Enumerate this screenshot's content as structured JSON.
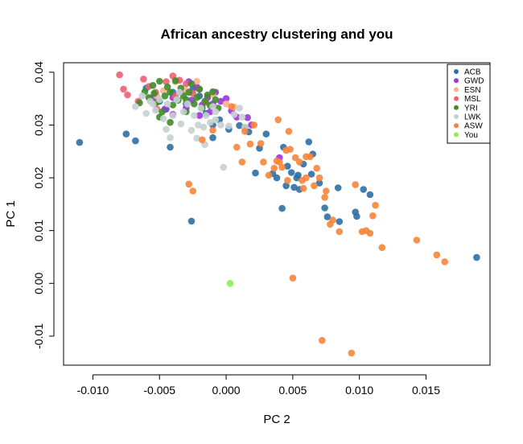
{
  "chart_data": {
    "type": "scatter",
    "title": "African ancestry clustering and you",
    "xlabel": "PC 2",
    "ylabel": "PC 1",
    "xlim": [
      -0.0122,
      0.0198
    ],
    "ylim": [
      -0.0155,
      0.0418
    ],
    "x_ticks": [
      -0.01,
      -0.005,
      0.0,
      0.005,
      0.01,
      0.015
    ],
    "x_tick_labels": [
      "-0.010",
      "-0.005",
      "0.000",
      "0.005",
      "0.010",
      "0.015"
    ],
    "y_ticks": [
      -0.01,
      0.0,
      0.01,
      0.02,
      0.03,
      0.04
    ],
    "y_tick_labels": [
      "-0.01",
      "0.00",
      "0.01",
      "0.02",
      "0.03",
      "0.04"
    ],
    "legend_position": "top-right",
    "series": [
      {
        "name": "ACB",
        "color": "#2f6fa3",
        "points": [
          [
            -0.011,
            0.0267
          ],
          [
            -0.0075,
            0.0283
          ],
          [
            -0.0068,
            0.027
          ],
          [
            -0.0042,
            0.0258
          ],
          [
            -0.0026,
            0.0118
          ],
          [
            -0.001,
            0.0276
          ],
          [
            0.0002,
            0.0292
          ],
          [
            0.001,
            0.0299
          ],
          [
            0.0014,
            0.0295
          ],
          [
            0.0017,
            0.0287
          ],
          [
            0.0022,
            0.0209
          ],
          [
            0.0025,
            0.0256
          ],
          [
            0.003,
            0.0283
          ],
          [
            0.0035,
            0.0208
          ],
          [
            0.0038,
            0.02
          ],
          [
            0.0042,
            0.0142
          ],
          [
            0.0043,
            0.0258
          ],
          [
            0.0045,
            0.0185
          ],
          [
            0.0046,
            0.0222
          ],
          [
            0.0049,
            0.021
          ],
          [
            0.0051,
            0.0182
          ],
          [
            0.0053,
            0.02
          ],
          [
            0.0054,
            0.0205
          ],
          [
            0.0055,
            0.0178
          ],
          [
            0.0058,
            0.0226
          ],
          [
            0.0062,
            0.0268
          ],
          [
            0.0064,
            0.0207
          ],
          [
            0.0065,
            0.0245
          ],
          [
            0.007,
            0.019
          ],
          [
            0.0074,
            0.0143
          ],
          [
            0.0076,
            0.0126
          ],
          [
            0.0084,
            0.0181
          ],
          [
            0.0085,
            0.0117
          ],
          [
            0.0097,
            0.0135
          ],
          [
            0.0098,
            0.0127
          ],
          [
            0.0103,
            0.0178
          ],
          [
            0.0108,
            0.0168
          ],
          [
            0.0188,
            0.0049
          ],
          [
            -0.005,
            0.0345
          ],
          [
            -0.004,
            0.0362
          ],
          [
            -0.003,
            0.034
          ],
          [
            -0.002,
            0.0355
          ],
          [
            -0.0015,
            0.0322
          ],
          [
            -0.0005,
            0.031
          ],
          [
            -0.006,
            0.037
          ],
          [
            -0.0045,
            0.033
          ],
          [
            -0.0025,
            0.0368
          ],
          [
            -0.001,
            0.03
          ]
        ]
      },
      {
        "name": "GWD",
        "color": "#a032e0",
        "points": [
          [
            -0.0046,
            0.033
          ],
          [
            -0.004,
            0.0352
          ],
          [
            -0.0034,
            0.0362
          ],
          [
            -0.003,
            0.0332
          ],
          [
            -0.0026,
            0.0347
          ],
          [
            -0.0022,
            0.0372
          ],
          [
            -0.0018,
            0.0338
          ],
          [
            -0.0014,
            0.0352
          ],
          [
            -0.0012,
            0.0325
          ],
          [
            -0.0008,
            0.0362
          ],
          [
            -0.0004,
            0.0345
          ],
          [
            0.0,
            0.035
          ],
          [
            0.0004,
            0.0327
          ],
          [
            0.0008,
            0.0315
          ],
          [
            0.0016,
            0.0314
          ],
          [
            0.0019,
            0.03
          ],
          [
            0.004,
            0.0238
          ],
          [
            -0.0055,
            0.0352
          ],
          [
            -0.0028,
            0.0382
          ],
          [
            -0.002,
            0.0318
          ],
          [
            -0.001,
            0.034
          ],
          [
            -0.004,
            0.032
          ]
        ]
      },
      {
        "name": "ESN",
        "color": "#f8b48a",
        "points": [
          [
            -0.0052,
            0.0355
          ],
          [
            -0.0038,
            0.0382
          ],
          [
            -0.0022,
            0.0383
          ],
          [
            -0.001,
            0.0358
          ],
          [
            0.0006,
            0.0334
          ],
          [
            -0.0047,
            0.0365
          ],
          [
            -0.003,
            0.0365
          ],
          [
            0.0,
            0.034
          ]
        ]
      },
      {
        "name": "MSL",
        "color": "#ef5f72",
        "points": [
          [
            -0.008,
            0.0395
          ],
          [
            -0.0077,
            0.0368
          ],
          [
            -0.0074,
            0.0357
          ],
          [
            -0.0066,
            0.0345
          ],
          [
            -0.0062,
            0.0387
          ],
          [
            -0.0058,
            0.0373
          ],
          [
            -0.0053,
            0.0362
          ],
          [
            -0.0045,
            0.0382
          ],
          [
            -0.004,
            0.0393
          ],
          [
            -0.0035,
            0.0385
          ],
          [
            -0.003,
            0.0378
          ],
          [
            -0.0025,
            0.036
          ],
          [
            -0.002,
            0.0368
          ],
          [
            -0.0015,
            0.0343
          ],
          [
            -0.0052,
            0.033
          ],
          [
            -0.0038,
            0.0355
          ]
        ]
      },
      {
        "name": "YRI",
        "color": "#3f8c2a",
        "points": [
          [
            -0.0065,
            0.0342
          ],
          [
            -0.0061,
            0.0363
          ],
          [
            -0.0058,
            0.0352
          ],
          [
            -0.0055,
            0.0375
          ],
          [
            -0.0052,
            0.0343
          ],
          [
            -0.005,
            0.0383
          ],
          [
            -0.0048,
            0.0325
          ],
          [
            -0.0046,
            0.0355
          ],
          [
            -0.0044,
            0.0372
          ],
          [
            -0.0042,
            0.0362
          ],
          [
            -0.004,
            0.0338
          ],
          [
            -0.0038,
            0.0384
          ],
          [
            -0.0036,
            0.0347
          ],
          [
            -0.0034,
            0.037
          ],
          [
            -0.0032,
            0.0355
          ],
          [
            -0.003,
            0.0325
          ],
          [
            -0.0028,
            0.0362
          ],
          [
            -0.0026,
            0.0378
          ],
          [
            -0.0024,
            0.034
          ],
          [
            -0.0022,
            0.0352
          ],
          [
            -0.002,
            0.0368
          ],
          [
            -0.0018,
            0.0332
          ],
          [
            -0.0016,
            0.0345
          ],
          [
            -0.0014,
            0.0357
          ],
          [
            -0.0012,
            0.0337
          ],
          [
            -0.001,
            0.0363
          ],
          [
            -0.0008,
            0.0348
          ],
          [
            -0.0006,
            0.0332
          ],
          [
            -0.005,
            0.0315
          ],
          [
            -0.0042,
            0.0305
          ],
          [
            -0.003,
            0.0348
          ],
          [
            -0.0054,
            0.036
          ]
        ]
      },
      {
        "name": "LWK",
        "color": "#c6d0d0",
        "points": [
          [
            -0.0068,
            0.0335
          ],
          [
            -0.0063,
            0.0355
          ],
          [
            -0.006,
            0.0322
          ],
          [
            -0.0057,
            0.0345
          ],
          [
            -0.0053,
            0.0328
          ],
          [
            -0.005,
            0.0348
          ],
          [
            -0.0047,
            0.0312
          ],
          [
            -0.0044,
            0.034
          ],
          [
            -0.0042,
            0.0276
          ],
          [
            -0.004,
            0.0318
          ],
          [
            -0.0037,
            0.0348
          ],
          [
            -0.0034,
            0.0302
          ],
          [
            -0.0032,
            0.0325
          ],
          [
            -0.0029,
            0.034
          ],
          [
            -0.0026,
            0.029
          ],
          [
            -0.0024,
            0.0318
          ],
          [
            -0.0021,
            0.03
          ],
          [
            -0.0019,
            0.0332
          ],
          [
            -0.0017,
            0.0296
          ],
          [
            -0.0015,
            0.0318
          ],
          [
            -0.0012,
            0.0305
          ],
          [
            -0.001,
            0.0335
          ],
          [
            -0.0008,
            0.031
          ],
          [
            -0.0004,
            0.03
          ],
          [
            0.0002,
            0.0298
          ],
          [
            0.0006,
            0.032
          ],
          [
            0.001,
            0.0332
          ],
          [
            0.0012,
            0.0315
          ],
          [
            0.0014,
            0.0296
          ],
          [
            -0.0016,
            0.0263
          ],
          [
            -0.0022,
            0.0275
          ],
          [
            -0.0045,
            0.0292
          ],
          [
            -0.0055,
            0.034
          ],
          [
            -0.0035,
            0.0362
          ],
          [
            -0.0008,
            0.0325
          ],
          [
            -0.0002,
            0.022
          ]
        ]
      },
      {
        "name": "ASW",
        "color": "#f7843b",
        "points": [
          [
            -0.0028,
            0.0188
          ],
          [
            -0.0025,
            0.0175
          ],
          [
            -0.0018,
            0.0272
          ],
          [
            -0.001,
            0.029
          ],
          [
            0.0004,
            0.0335
          ],
          [
            0.0008,
            0.0258
          ],
          [
            0.0012,
            0.023
          ],
          [
            0.0014,
            0.0288
          ],
          [
            0.0018,
            0.0264
          ],
          [
            0.0021,
            0.03
          ],
          [
            0.0026,
            0.0265
          ],
          [
            0.0028,
            0.023
          ],
          [
            0.0032,
            0.0205
          ],
          [
            0.0036,
            0.0218
          ],
          [
            0.0038,
            0.0232
          ],
          [
            0.0039,
            0.031
          ],
          [
            0.004,
            0.023
          ],
          [
            0.0042,
            0.022
          ],
          [
            0.0045,
            0.0252
          ],
          [
            0.0046,
            0.0195
          ],
          [
            0.0047,
            0.0288
          ],
          [
            0.0048,
            0.0254
          ],
          [
            0.005,
            0.001
          ],
          [
            0.0052,
            0.0238
          ],
          [
            0.0055,
            0.023
          ],
          [
            0.0057,
            0.0195
          ],
          [
            0.0058,
            0.018
          ],
          [
            0.006,
            0.02
          ],
          [
            0.0063,
            0.024
          ],
          [
            0.0066,
            0.0185
          ],
          [
            0.0068,
            0.0218
          ],
          [
            0.007,
            0.02
          ],
          [
            0.0072,
            -0.0108
          ],
          [
            0.0074,
            0.0163
          ],
          [
            0.0075,
            0.0175
          ],
          [
            0.0078,
            0.0112
          ],
          [
            0.008,
            0.012
          ],
          [
            0.0085,
            0.0098
          ],
          [
            0.0094,
            -0.0132
          ],
          [
            0.0097,
            0.0187
          ],
          [
            0.0102,
            0.0098
          ],
          [
            0.0105,
            0.01
          ],
          [
            0.0108,
            0.0095
          ],
          [
            0.011,
            0.0128
          ],
          [
            0.0112,
            0.0148
          ],
          [
            0.0117,
            0.0068
          ],
          [
            0.0143,
            0.0082
          ],
          [
            0.0158,
            0.0054
          ],
          [
            0.0164,
            0.0041
          ],
          [
            0.006,
            0.024
          ]
        ]
      },
      {
        "name": "You",
        "color": "#8cf04a",
        "points": [
          [
            0.0003,
            0.0
          ]
        ]
      }
    ]
  }
}
